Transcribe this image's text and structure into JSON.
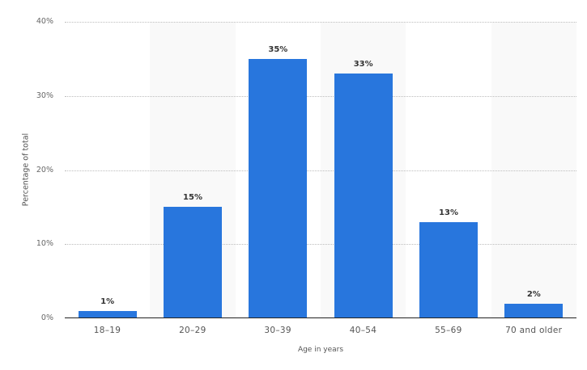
{
  "chart_data": {
    "type": "bar",
    "title": "",
    "xlabel": "Age in years",
    "ylabel": "Percentage of total",
    "categories": [
      "18-19",
      "20-29",
      "30-39",
      "40-54",
      "55-69",
      "70 and older"
    ],
    "values": [
      1,
      15,
      35,
      33,
      13,
      2
    ],
    "value_labels": [
      "1%",
      "15%",
      "35%",
      "33%",
      "13%",
      "2%"
    ],
    "ylim": [
      0,
      40
    ],
    "yticks": [
      0,
      10,
      20,
      30,
      40
    ],
    "ytick_labels": [
      "0%",
      "10%",
      "20%",
      "30%",
      "40%"
    ],
    "grid": true,
    "legend": null,
    "bar_color": "#2876dd"
  },
  "axis": {
    "ylabel": "Percentage of total",
    "xlabel": "Age in years",
    "ytick_labels": [
      "40%",
      "30%",
      "20%",
      "10%",
      "0%"
    ]
  }
}
